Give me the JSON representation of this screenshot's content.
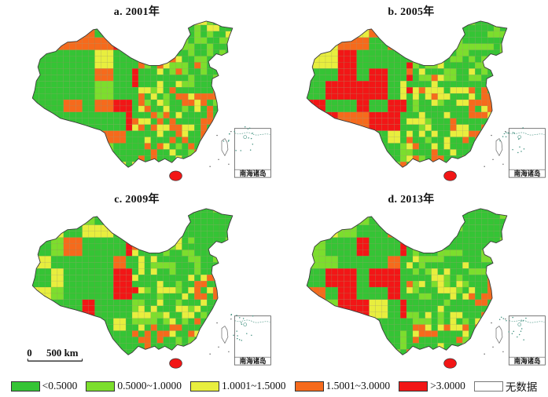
{
  "figure": {
    "panels": [
      {
        "label": "a. 2001年",
        "year": "2001"
      },
      {
        "label": "b. 2005年",
        "year": "2005"
      },
      {
        "label": "c. 2009年",
        "year": "2009"
      },
      {
        "label": "d. 2013年",
        "year": "2013"
      }
    ],
    "inset_label": "南海诸岛",
    "scale_bar": {
      "zero": "0",
      "distance": "500 km"
    },
    "legend": {
      "items": [
        {
          "label": "<0.5000",
          "color": "#35C435"
        },
        {
          "label": "0.5000~1.0000",
          "color": "#7CDE2D"
        },
        {
          "label": "1.0001~1.5000",
          "color": "#E8EE3E"
        },
        {
          "label": "1.5001~3.0000",
          "color": "#F66A1C"
        },
        {
          "label": ">3.0000",
          "color": "#F21616"
        },
        {
          "label": "无数据",
          "color": "#FFFFFF"
        }
      ]
    },
    "map_style": {
      "outline_color": "#3A3A3A",
      "cell_border_color": "#8E8E5A",
      "island_dot_color": "#3E8F7E",
      "hainan_color": "#F21616"
    }
  }
}
